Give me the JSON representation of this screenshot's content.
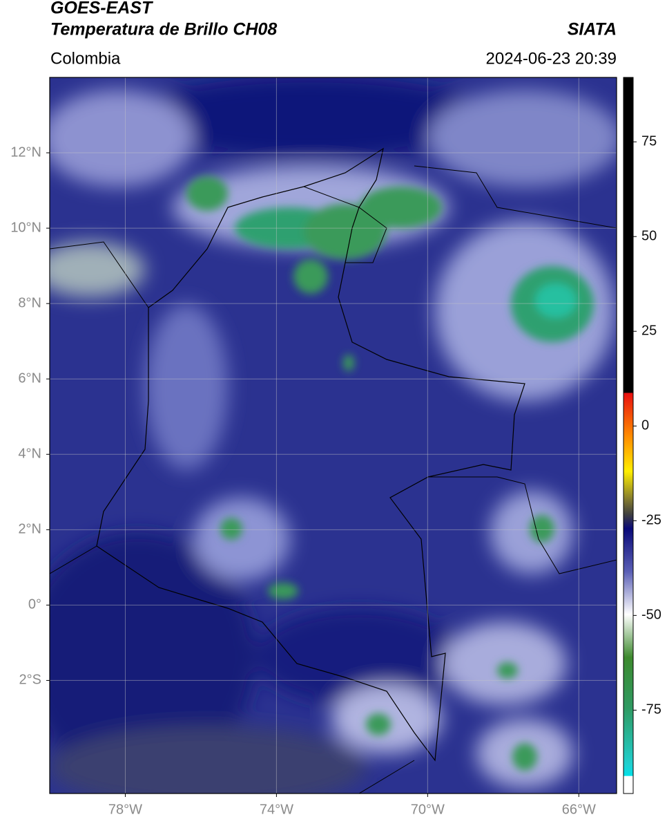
{
  "header": {
    "title_line1": "GOES-EAST",
    "title_line2": "Temperatura de Brillo CH08",
    "source": "SIATA",
    "region": "Colombia",
    "timestamp": "2024-06-23 20:39"
  },
  "map": {
    "lon_range": [
      -80,
      -65
    ],
    "lat_range": [
      -5,
      14
    ],
    "lon_ticks": [
      {
        "value": -78,
        "label": "78°W"
      },
      {
        "value": -74,
        "label": "74°W"
      },
      {
        "value": -70,
        "label": "70°W"
      },
      {
        "value": -66,
        "label": "66°W"
      }
    ],
    "lat_ticks": [
      {
        "value": 12,
        "label": "12°N"
      },
      {
        "value": 10,
        "label": "10°N"
      },
      {
        "value": 8,
        "label": "8°N"
      },
      {
        "value": 6,
        "label": "6°N"
      },
      {
        "value": 4,
        "label": "4°N"
      },
      {
        "value": 2,
        "label": "2°N"
      },
      {
        "value": 0,
        "label": "0°"
      },
      {
        "value": -2,
        "label": "2°S"
      }
    ]
  },
  "colorbar": {
    "range": [
      -97,
      92
    ],
    "ticks": [
      75,
      50,
      25,
      0,
      -25,
      -50,
      -75
    ]
  }
}
